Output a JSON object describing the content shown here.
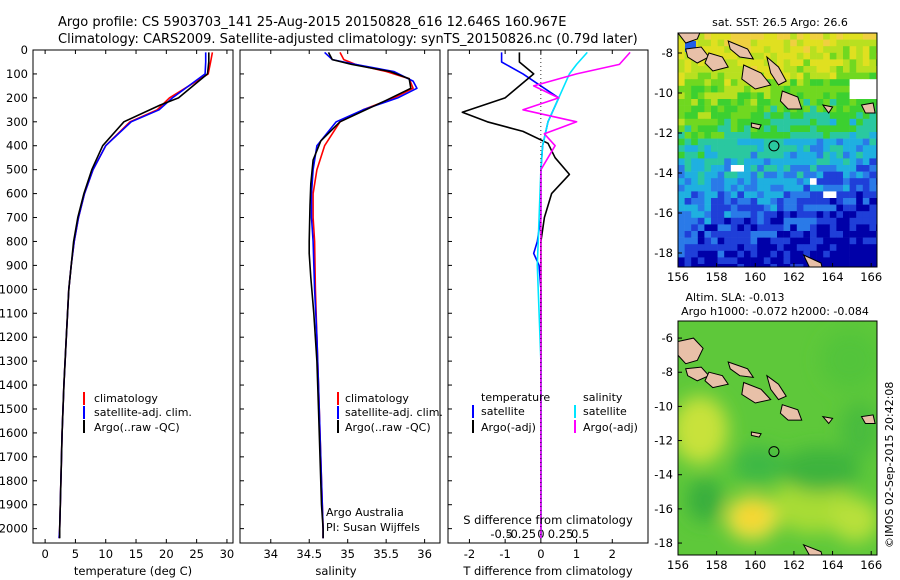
{
  "header": {
    "line1": "Argo profile: CS 5903703_141 25-Aug-2015 20150828_616 12.646S 160.967E",
    "line2": "Climatology: CARS2009. Satellite-adjusted climatology: synTS_20150826.nc (0.79d later)"
  },
  "colors": {
    "climatology": "#ff0000",
    "satellite": "#0000ff",
    "argo": "#000000",
    "salinity_satellite": "#00e5ff",
    "salinity_argo": "#ff00ff"
  },
  "chart_data": [
    {
      "type": "line",
      "id": "temperature",
      "xlabel": "temperature (deg C)",
      "xlim": [
        -2,
        31
      ],
      "xticks": [
        0,
        5,
        10,
        15,
        20,
        25,
        30
      ],
      "ylim": [
        0,
        2060
      ],
      "yticks": [
        0,
        100,
        200,
        300,
        400,
        500,
        600,
        700,
        800,
        900,
        1000,
        1100,
        1200,
        1300,
        1400,
        1500,
        1600,
        1700,
        1800,
        1900,
        2000
      ],
      "legend": [
        "climatology",
        "satellite-adj. clim.",
        "Argo(..raw -QC)"
      ],
      "series": [
        {
          "name": "climatology",
          "color": "#ff0000",
          "points": [
            [
              27.6,
              10
            ],
            [
              27.3,
              50
            ],
            [
              26.9,
              100
            ],
            [
              20.5,
              200
            ],
            [
              18.5,
              250
            ],
            [
              14,
              300
            ],
            [
              10,
              400
            ],
            [
              7.9,
              500
            ],
            [
              6.5,
              600
            ],
            [
              5.5,
              700
            ],
            [
              4.8,
              800
            ],
            [
              4.3,
              900
            ],
            [
              3.9,
              1000
            ],
            [
              3.5,
              1200
            ],
            [
              3.1,
              1400
            ],
            [
              2.8,
              1600
            ],
            [
              2.6,
              1800
            ],
            [
              2.4,
              2000
            ],
            [
              2.3,
              2040
            ]
          ]
        },
        {
          "name": "satellite-adj. clim.",
          "color": "#0000ff",
          "points": [
            [
              26.5,
              10
            ],
            [
              26.5,
              50
            ],
            [
              26.4,
              100
            ],
            [
              21,
              200
            ],
            [
              18.8,
              250
            ],
            [
              14.2,
              300
            ],
            [
              10,
              400
            ],
            [
              7.9,
              500
            ],
            [
              6.5,
              600
            ],
            [
              5.5,
              700
            ],
            [
              4.8,
              800
            ],
            [
              4.3,
              900
            ],
            [
              3.9,
              1000
            ],
            [
              3.5,
              1200
            ],
            [
              3.1,
              1400
            ],
            [
              2.8,
              1600
            ],
            [
              2.6,
              1800
            ],
            [
              2.4,
              2000
            ],
            [
              2.3,
              2040
            ]
          ]
        },
        {
          "name": "Argo(..raw -QC)",
          "color": "#000000",
          "points": [
            [
              27,
              10
            ],
            [
              27,
              50
            ],
            [
              26.8,
              100
            ],
            [
              22,
              200
            ],
            [
              19,
              230
            ],
            [
              13,
              300
            ],
            [
              9.5,
              400
            ],
            [
              7.7,
              500
            ],
            [
              6.4,
              600
            ],
            [
              5.4,
              700
            ],
            [
              4.7,
              800
            ],
            [
              4.3,
              900
            ],
            [
              3.9,
              1000
            ],
            [
              3.5,
              1200
            ],
            [
              3.1,
              1400
            ],
            [
              2.8,
              1600
            ],
            [
              2.6,
              1800
            ],
            [
              2.4,
              2000
            ],
            [
              2.4,
              2040
            ]
          ]
        }
      ]
    },
    {
      "type": "line",
      "id": "salinity",
      "xlabel": "salinity",
      "xlim": [
        33.6,
        36.2
      ],
      "xticks": [
        34,
        34.5,
        35,
        35.5,
        36
      ],
      "xticklabels": [
        "34",
        "34.5",
        "35",
        "35.5",
        "36"
      ],
      "ylim": [
        0,
        2060
      ],
      "legend": [
        "climatology",
        "satellite-adj. clim.",
        "Argo(..raw -QC)"
      ],
      "annotation": [
        "Argo Australia",
        "PI: Susan Wijffels"
      ],
      "series": [
        {
          "name": "climatology",
          "color": "#ff0000",
          "points": [
            [
              34.9,
              10
            ],
            [
              34.95,
              40
            ],
            [
              35.1,
              60
            ],
            [
              35.5,
              90
            ],
            [
              35.8,
              120
            ],
            [
              35.85,
              160
            ],
            [
              35.6,
              200
            ],
            [
              35.2,
              250
            ],
            [
              34.9,
              300
            ],
            [
              34.7,
              400
            ],
            [
              34.6,
              500
            ],
            [
              34.55,
              600
            ],
            [
              34.55,
              700
            ],
            [
              34.57,
              800
            ],
            [
              34.58,
              1000
            ],
            [
              34.6,
              1200
            ],
            [
              34.62,
              1400
            ],
            [
              34.64,
              1600
            ],
            [
              34.66,
              1800
            ],
            [
              34.68,
              2000
            ],
            [
              34.68,
              2040
            ]
          ]
        },
        {
          "name": "satellite-adj. clim.",
          "color": "#0000ff",
          "points": [
            [
              34.7,
              10
            ],
            [
              34.8,
              40
            ],
            [
              35.1,
              60
            ],
            [
              35.6,
              90
            ],
            [
              35.85,
              130
            ],
            [
              35.9,
              160
            ],
            [
              35.65,
              200
            ],
            [
              35.2,
              250
            ],
            [
              34.85,
              300
            ],
            [
              34.6,
              400
            ],
            [
              34.55,
              500
            ],
            [
              34.53,
              600
            ],
            [
              34.53,
              700
            ],
            [
              34.55,
              800
            ],
            [
              34.57,
              1000
            ],
            [
              34.6,
              1200
            ],
            [
              34.62,
              1400
            ],
            [
              34.64,
              1600
            ],
            [
              34.66,
              1800
            ],
            [
              34.68,
              2000
            ],
            [
              34.68,
              2040
            ]
          ]
        },
        {
          "name": "Argo(..raw -QC)",
          "color": "#000000",
          "points": [
            [
              34.75,
              10
            ],
            [
              34.8,
              40
            ],
            [
              35.05,
              60
            ],
            [
              35.55,
              90
            ],
            [
              35.8,
              120
            ],
            [
              35.82,
              160
            ],
            [
              35.5,
              210
            ],
            [
              34.9,
              300
            ],
            [
              34.65,
              380
            ],
            [
              34.55,
              460
            ],
            [
              34.52,
              560
            ],
            [
              34.51,
              650
            ],
            [
              34.5,
              800
            ],
            [
              34.5,
              850
            ],
            [
              34.52,
              950
            ],
            [
              34.56,
              1100
            ],
            [
              34.6,
              1300
            ],
            [
              34.62,
              1500
            ],
            [
              34.64,
              1700
            ],
            [
              34.66,
              1900
            ],
            [
              34.68,
              2000
            ],
            [
              34.68,
              2040
            ]
          ]
        }
      ]
    },
    {
      "type": "line",
      "id": "difference",
      "xlabel": "T difference from climatology",
      "xlabel_top": "S difference from climatology",
      "xlim": [
        -2.6,
        3.0
      ],
      "xticks": [
        -2,
        -1,
        0,
        1,
        2
      ],
      "top_ticks": [
        -0.5,
        -0.25,
        0,
        0.25,
        0.5
      ],
      "top_ticklabels": [
        "-0.5",
        "-0.25",
        "0",
        "0.25",
        "0.5"
      ],
      "ylim": [
        0,
        2060
      ],
      "legend_title_left": "temperature",
      "legend_title_right": "salinity",
      "legend": [
        "satellite",
        "Argo(-adj)",
        "satellite",
        "Argo(-adj)"
      ],
      "series": [
        {
          "name": "satellite",
          "group": "temperature",
          "color": "#0000ff",
          "points": [
            [
              -1.1,
              10
            ],
            [
              -1.1,
              50
            ],
            [
              -0.5,
              100
            ],
            [
              0.5,
              200
            ],
            [
              0.2,
              300
            ],
            [
              0.05,
              400
            ],
            [
              0,
              500
            ],
            [
              0,
              600
            ],
            [
              0,
              700
            ],
            [
              -0.1,
              800
            ],
            [
              -0.2,
              850
            ],
            [
              -0.05,
              900
            ],
            [
              0,
              1000
            ],
            [
              0,
              1200
            ],
            [
              0,
              1400
            ],
            [
              0,
              1600
            ],
            [
              0,
              1800
            ],
            [
              0,
              2000
            ],
            [
              0,
              2040
            ]
          ]
        },
        {
          "name": "Argo(-adj)",
          "group": "temperature",
          "color": "#000000",
          "points": [
            [
              -0.6,
              10
            ],
            [
              -0.6,
              50
            ],
            [
              -0.2,
              100
            ],
            [
              -1,
              200
            ],
            [
              -2.2,
              260
            ],
            [
              -1.5,
              300
            ],
            [
              -0.5,
              340
            ],
            [
              0.2,
              390
            ],
            [
              0.4,
              450
            ],
            [
              0.8,
              520
            ],
            [
              0.3,
              600
            ],
            [
              0.1,
              700
            ],
            [
              0,
              800
            ],
            [
              0,
              1000
            ],
            [
              0,
              1200
            ],
            [
              0,
              1400
            ],
            [
              0,
              1600
            ],
            [
              0,
              1800
            ],
            [
              0,
              2000
            ],
            [
              0,
              2040
            ]
          ]
        },
        {
          "name": "satellite",
          "group": "salinity",
          "color": "#00e5ff",
          "points": [
            [
              1.3,
              10
            ],
            [
              1,
              60
            ],
            [
              0.8,
              100
            ],
            [
              0.5,
              200
            ],
            [
              0.2,
              300
            ],
            [
              0.05,
              400
            ],
            [
              0,
              500
            ],
            [
              -0.05,
              700
            ],
            [
              -0.1,
              900
            ],
            [
              -0.05,
              1100
            ],
            [
              0,
              1300
            ],
            [
              0,
              1500
            ],
            [
              0,
              1700
            ],
            [
              0,
              1900
            ],
            [
              0,
              2040
            ]
          ]
        },
        {
          "name": "Argo(-adj)",
          "group": "salinity",
          "color": "#ff00ff",
          "points": [
            [
              2.5,
              10
            ],
            [
              2.2,
              60
            ],
            [
              1,
              100
            ],
            [
              -0.2,
              150
            ],
            [
              0.5,
              200
            ],
            [
              -0.5,
              250
            ],
            [
              1,
              300
            ],
            [
              0.1,
              350
            ],
            [
              0.4,
              400
            ],
            [
              0,
              500
            ],
            [
              0,
              700
            ],
            [
              0,
              900
            ],
            [
              0,
              1100
            ],
            [
              0,
              1300
            ],
            [
              0,
              1500
            ],
            [
              0,
              1700
            ],
            [
              0,
              1900
            ],
            [
              0,
              2040
            ]
          ]
        }
      ]
    },
    {
      "type": "heatmap",
      "id": "sst_map",
      "title": "sat. SST: 26.5 Argo: 26.6",
      "xlim": [
        156,
        166.3
      ],
      "ylim": [
        -18.7,
        -7.0
      ],
      "xticks": [
        156,
        158,
        160,
        162,
        164,
        166
      ],
      "yticks": [
        -8,
        -10,
        -12,
        -14,
        -16,
        -18
      ],
      "marker": {
        "lon": 160.967,
        "lat": -12.646
      },
      "palette": [
        "#0000a8",
        "#1f3fd8",
        "#2a7ae8",
        "#1fb0e0",
        "#2ac8a0",
        "#3cd030",
        "#70d820",
        "#b8e020",
        "#e0e020",
        "#f0d040"
      ]
    },
    {
      "type": "heatmap",
      "id": "sla_map",
      "title_line1": "Altim. SLA: -0.013",
      "title_line2": "Argo h1000: -0.072 h2000: -0.084",
      "xlim": [
        156,
        166.3
      ],
      "ylim": [
        -18.7,
        -5.0
      ],
      "xticks": [
        156,
        158,
        160,
        162,
        164,
        166
      ],
      "yticks": [
        -6,
        -8,
        -10,
        -12,
        -14,
        -16,
        -18
      ],
      "marker": {
        "lon": 160.967,
        "lat": -12.646
      }
    }
  ],
  "footer": {
    "credit": "©IMOS 02-Sep-2015 20:42:08"
  }
}
